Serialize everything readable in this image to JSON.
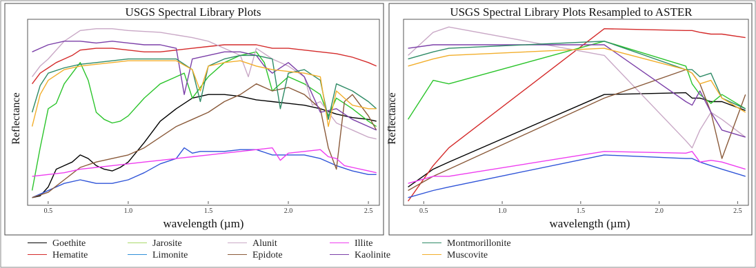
{
  "chart_data": [
    {
      "type": "line",
      "title": "USGS Spectral Library Plots",
      "xlabel": "wavelength (µm)",
      "ylabel": "Reflectance",
      "xlim": [
        0.38,
        2.56
      ],
      "ylim": [
        0,
        1
      ],
      "xticks": [
        0.5,
        1.0,
        1.5,
        2.0,
        2.5
      ],
      "xtick_labels": [
        "0.5",
        "1.0",
        "1.5",
        "2.0",
        "2.5"
      ],
      "grid": false,
      "series": [
        {
          "name": "Goethite",
          "color": "#000000",
          "x": [
            0.4,
            0.45,
            0.5,
            0.55,
            0.6,
            0.65,
            0.7,
            0.75,
            0.8,
            0.85,
            0.9,
            0.95,
            1.0,
            1.1,
            1.2,
            1.3,
            1.4,
            1.5,
            1.6,
            1.7,
            1.8,
            1.9,
            2.0,
            2.1,
            2.2,
            2.3,
            2.4,
            2.5,
            2.55
          ],
          "y": [
            0.02,
            0.03,
            0.08,
            0.18,
            0.2,
            0.22,
            0.26,
            0.24,
            0.2,
            0.18,
            0.17,
            0.19,
            0.22,
            0.33,
            0.45,
            0.52,
            0.58,
            0.6,
            0.6,
            0.59,
            0.57,
            0.56,
            0.55,
            0.54,
            0.52,
            0.49,
            0.47,
            0.46,
            0.45
          ]
        },
        {
          "name": "Hematite",
          "color": "#d42a2a",
          "x": [
            0.4,
            0.45,
            0.5,
            0.55,
            0.6,
            0.65,
            0.7,
            0.8,
            0.9,
            1.0,
            1.1,
            1.2,
            1.3,
            1.4,
            1.5,
            1.6,
            1.7,
            1.8,
            1.9,
            2.0,
            2.1,
            2.2,
            2.3,
            2.4,
            2.5,
            2.55
          ],
          "y": [
            0.66,
            0.72,
            0.75,
            0.78,
            0.8,
            0.82,
            0.85,
            0.86,
            0.86,
            0.85,
            0.84,
            0.84,
            0.85,
            0.86,
            0.87,
            0.88,
            0.88,
            0.88,
            0.86,
            0.86,
            0.85,
            0.84,
            0.83,
            0.81,
            0.78,
            0.76
          ]
        },
        {
          "name": "Jarosite",
          "color": "#2bc42b",
          "x": [
            0.4,
            0.45,
            0.5,
            0.55,
            0.6,
            0.65,
            0.7,
            0.75,
            0.8,
            0.85,
            0.9,
            0.95,
            1.0,
            1.1,
            1.2,
            1.3,
            1.35,
            1.4,
            1.5,
            1.6,
            1.7,
            1.8,
            1.85,
            1.9,
            2.0,
            2.1,
            2.2,
            2.25,
            2.3,
            2.4,
            2.5,
            2.55
          ],
          "y": [
            0.06,
            0.3,
            0.52,
            0.55,
            0.66,
            0.72,
            0.78,
            0.68,
            0.5,
            0.46,
            0.44,
            0.45,
            0.48,
            0.58,
            0.66,
            0.7,
            0.72,
            0.58,
            0.7,
            0.78,
            0.82,
            0.84,
            0.78,
            0.62,
            0.7,
            0.66,
            0.6,
            0.48,
            0.58,
            0.52,
            0.45,
            0.42
          ]
        },
        {
          "name": "Limonite",
          "color": "#2f54d8",
          "x": [
            0.4,
            0.45,
            0.5,
            0.6,
            0.7,
            0.8,
            0.9,
            1.0,
            1.1,
            1.2,
            1.3,
            1.35,
            1.4,
            1.45,
            1.5,
            1.6,
            1.7,
            1.8,
            1.9,
            2.0,
            2.1,
            2.2,
            2.3,
            2.4,
            2.5,
            2.55
          ],
          "y": [
            0.02,
            0.04,
            0.06,
            0.1,
            0.12,
            0.1,
            0.1,
            0.12,
            0.16,
            0.21,
            0.24,
            0.3,
            0.27,
            0.28,
            0.28,
            0.28,
            0.29,
            0.29,
            0.26,
            0.26,
            0.26,
            0.24,
            0.2,
            0.17,
            0.15,
            0.15
          ]
        },
        {
          "name": "Alunit",
          "color": "#c9a8c6",
          "x": [
            0.4,
            0.45,
            0.5,
            0.6,
            0.7,
            0.8,
            0.9,
            1.0,
            1.2,
            1.4,
            1.5,
            1.6,
            1.7,
            1.75,
            1.8,
            1.9,
            2.0,
            2.1,
            2.15,
            2.2,
            2.3,
            2.4,
            2.5,
            2.55
          ],
          "y": [
            0.7,
            0.76,
            0.8,
            0.9,
            0.96,
            0.97,
            0.97,
            0.96,
            0.95,
            0.92,
            0.9,
            0.86,
            0.82,
            0.7,
            0.86,
            0.8,
            0.76,
            0.7,
            0.54,
            0.56,
            0.44,
            0.4,
            0.36,
            0.35
          ]
        },
        {
          "name": "Epidote",
          "color": "#8a5a3a",
          "x": [
            0.4,
            0.5,
            0.6,
            0.7,
            0.8,
            0.9,
            1.0,
            1.1,
            1.2,
            1.3,
            1.4,
            1.5,
            1.6,
            1.7,
            1.8,
            1.9,
            2.0,
            2.1,
            2.2,
            2.25,
            2.3,
            2.35,
            2.4,
            2.5,
            2.55
          ],
          "y": [
            0.02,
            0.05,
            0.12,
            0.19,
            0.22,
            0.24,
            0.26,
            0.3,
            0.36,
            0.42,
            0.46,
            0.5,
            0.56,
            0.6,
            0.66,
            0.62,
            0.64,
            0.6,
            0.52,
            0.3,
            0.18,
            0.56,
            0.6,
            0.48,
            0.4
          ]
        },
        {
          "name": "Illite",
          "color": "#ee3cf0",
          "x": [
            0.4,
            0.5,
            0.6,
            0.7,
            0.8,
            0.9,
            1.0,
            1.1,
            1.2,
            1.3,
            1.4,
            1.5,
            1.6,
            1.7,
            1.8,
            1.9,
            1.95,
            2.0,
            2.1,
            2.2,
            2.25,
            2.3,
            2.35,
            2.4,
            2.5,
            2.55
          ],
          "y": [
            0.14,
            0.15,
            0.16,
            0.18,
            0.19,
            0.2,
            0.21,
            0.22,
            0.23,
            0.24,
            0.25,
            0.26,
            0.27,
            0.28,
            0.29,
            0.3,
            0.23,
            0.27,
            0.28,
            0.29,
            0.25,
            0.24,
            0.2,
            0.19,
            0.17,
            0.16
          ]
        },
        {
          "name": "Kaolinite",
          "color": "#7b3fa8",
          "x": [
            0.4,
            0.45,
            0.5,
            0.6,
            0.7,
            0.8,
            0.9,
            1.0,
            1.1,
            1.2,
            1.3,
            1.35,
            1.4,
            1.5,
            1.6,
            1.7,
            1.8,
            1.85,
            1.9,
            2.0,
            2.1,
            2.15,
            2.2,
            2.3,
            2.4,
            2.5,
            2.55
          ],
          "y": [
            0.84,
            0.86,
            0.88,
            0.9,
            0.9,
            0.89,
            0.9,
            0.89,
            0.88,
            0.88,
            0.86,
            0.6,
            0.8,
            0.82,
            0.84,
            0.84,
            0.82,
            0.76,
            0.72,
            0.78,
            0.7,
            0.6,
            0.5,
            0.52,
            0.46,
            0.42,
            0.4
          ]
        },
        {
          "name": "Montmorillonite",
          "color": "#2e8b66",
          "x": [
            0.4,
            0.45,
            0.5,
            0.6,
            0.7,
            0.8,
            0.9,
            1.0,
            1.1,
            1.2,
            1.3,
            1.4,
            1.45,
            1.5,
            1.6,
            1.7,
            1.8,
            1.9,
            1.95,
            2.0,
            2.1,
            2.2,
            2.25,
            2.3,
            2.4,
            2.5,
            2.55
          ],
          "y": [
            0.5,
            0.65,
            0.72,
            0.75,
            0.77,
            0.78,
            0.79,
            0.8,
            0.8,
            0.8,
            0.8,
            0.74,
            0.56,
            0.76,
            0.8,
            0.82,
            0.82,
            0.8,
            0.52,
            0.72,
            0.74,
            0.68,
            0.46,
            0.66,
            0.62,
            0.56,
            0.52
          ]
        },
        {
          "name": "Muscovite",
          "color": "#f2ae2b",
          "x": [
            0.4,
            0.45,
            0.5,
            0.6,
            0.7,
            0.8,
            0.9,
            1.0,
            1.1,
            1.2,
            1.3,
            1.4,
            1.45,
            1.5,
            1.6,
            1.7,
            1.8,
            1.9,
            2.0,
            2.1,
            2.2,
            2.25,
            2.3,
            2.4,
            2.5,
            2.55
          ],
          "y": [
            0.42,
            0.6,
            0.68,
            0.74,
            0.76,
            0.77,
            0.78,
            0.79,
            0.79,
            0.79,
            0.79,
            0.74,
            0.62,
            0.76,
            0.78,
            0.79,
            0.76,
            0.74,
            0.73,
            0.72,
            0.7,
            0.42,
            0.62,
            0.54,
            0.52,
            0.52
          ]
        }
      ]
    },
    {
      "type": "line",
      "title": "USGS Spectral Library Plots Resampled to ASTER",
      "xlabel": "wavelength (µm)",
      "ylabel": "Reflectance",
      "xlim": [
        0.38,
        2.56
      ],
      "ylim": [
        0,
        1
      ],
      "xticks": [
        0.5,
        1.0,
        1.5,
        2.0,
        2.5
      ],
      "xtick_labels": [
        "0.5",
        "1.0",
        "1.5",
        "2.0",
        "2.5"
      ],
      "grid": false,
      "series": [
        {
          "name": "Goethite",
          "color": "#000000",
          "x": [
            0.4,
            0.56,
            0.66,
            1.65,
            2.17,
            2.21,
            2.26,
            2.33,
            2.4,
            2.55
          ],
          "y": [
            0.08,
            0.18,
            0.22,
            0.6,
            0.61,
            0.58,
            0.58,
            0.56,
            0.56,
            0.51
          ]
        },
        {
          "name": "Hematite",
          "color": "#d42a2a",
          "x": [
            0.4,
            0.56,
            0.66,
            1.65,
            2.17,
            2.21,
            2.26,
            2.33,
            2.4,
            2.55
          ],
          "y": [
            0.0,
            0.2,
            0.3,
            0.97,
            0.96,
            0.96,
            0.95,
            0.94,
            0.94,
            0.92
          ]
        },
        {
          "name": "Jarosite",
          "color": "#2bc42b",
          "x": [
            0.4,
            0.56,
            0.66,
            1.65,
            2.17,
            2.21,
            2.26,
            2.33,
            2.4,
            2.55
          ],
          "y": [
            0.46,
            0.68,
            0.66,
            0.9,
            0.76,
            0.66,
            0.6,
            0.55,
            0.6,
            0.52
          ]
        },
        {
          "name": "Limonite",
          "color": "#2f54d8",
          "x": [
            0.4,
            0.56,
            0.66,
            1.65,
            2.17,
            2.21,
            2.26,
            2.33,
            2.4,
            2.55
          ],
          "y": [
            0.02,
            0.06,
            0.08,
            0.26,
            0.24,
            0.24,
            0.22,
            0.2,
            0.18,
            0.14
          ]
        },
        {
          "name": "Alunit",
          "color": "#c9a8c6",
          "x": [
            0.4,
            0.56,
            0.66,
            1.65,
            2.17,
            2.21,
            2.26,
            2.33,
            2.4,
            2.55
          ],
          "y": [
            0.82,
            0.95,
            0.98,
            0.82,
            0.34,
            0.3,
            0.4,
            0.5,
            0.46,
            0.36
          ]
        },
        {
          "name": "Epidote",
          "color": "#8a5a3a",
          "x": [
            0.4,
            0.56,
            0.66,
            1.65,
            2.17,
            2.21,
            2.26,
            2.33,
            2.4,
            2.55
          ],
          "y": [
            0.06,
            0.14,
            0.18,
            0.58,
            0.74,
            0.72,
            0.66,
            0.5,
            0.24,
            0.6
          ]
        },
        {
          "name": "Illite",
          "color": "#ee3cf0",
          "x": [
            0.4,
            0.56,
            0.66,
            1.65,
            2.17,
            2.21,
            2.26,
            2.33,
            2.4,
            2.55
          ],
          "y": [
            0.1,
            0.14,
            0.14,
            0.28,
            0.27,
            0.28,
            0.22,
            0.23,
            0.22,
            0.18
          ]
        },
        {
          "name": "Kaolinite",
          "color": "#7b3fa8",
          "x": [
            0.4,
            0.56,
            0.66,
            1.65,
            2.17,
            2.21,
            2.26,
            2.33,
            2.4,
            2.55
          ],
          "y": [
            0.86,
            0.88,
            0.88,
            0.88,
            0.56,
            0.54,
            0.62,
            0.5,
            0.4,
            0.36
          ]
        },
        {
          "name": "Montmorillonite",
          "color": "#2e8b66",
          "x": [
            0.4,
            0.56,
            0.66,
            1.65,
            2.17,
            2.21,
            2.26,
            2.33,
            2.4,
            2.55
          ],
          "y": [
            0.8,
            0.84,
            0.86,
            0.9,
            0.74,
            0.74,
            0.7,
            0.72,
            0.58,
            0.52
          ]
        },
        {
          "name": "Muscovite",
          "color": "#f2ae2b",
          "x": [
            0.4,
            0.56,
            0.66,
            1.65,
            2.17,
            2.21,
            2.26,
            2.33,
            2.4,
            2.55
          ],
          "y": [
            0.76,
            0.8,
            0.82,
            0.86,
            0.74,
            0.72,
            0.66,
            0.68,
            0.58,
            0.5
          ]
        }
      ]
    }
  ],
  "legend": [
    {
      "label": "Goethite",
      "color": "#000000"
    },
    {
      "label": "Hematite",
      "color": "#d42a2a"
    },
    {
      "label": "Jarosite",
      "color": "#a8d96a"
    },
    {
      "label": "Limonite",
      "color": "#2f8fd8"
    },
    {
      "label": "Alunit",
      "color": "#c9a8c6"
    },
    {
      "label": "Epidote",
      "color": "#8a5a3a"
    },
    {
      "label": "Illite",
      "color": "#ee3cf0"
    },
    {
      "label": "Kaolinite",
      "color": "#7b3fa8"
    },
    {
      "label": "Montmorillonite",
      "color": "#2e8b66"
    },
    {
      "label": "Muscovite",
      "color": "#f2ae2b"
    }
  ]
}
